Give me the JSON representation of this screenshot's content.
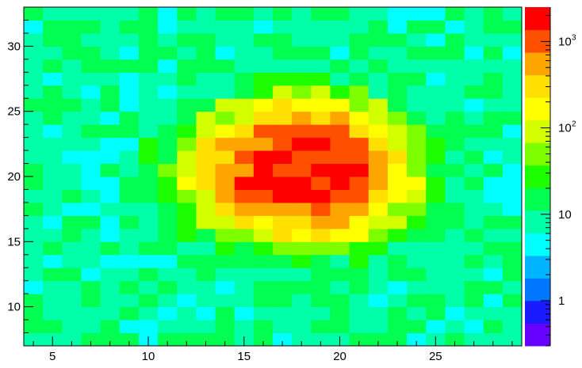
{
  "chart_data": {
    "type": "heatmap",
    "title": "",
    "xlabel": "",
    "ylabel": "",
    "x_range": [
      3.5,
      29.5
    ],
    "y_range": [
      7,
      33
    ],
    "x_bin_width": 1,
    "y_bin_width": 1,
    "x_ticks": [
      "5",
      "10",
      "15",
      "20",
      "25"
    ],
    "x_tick_values": [
      5,
      10,
      15,
      20,
      25
    ],
    "y_ticks": [
      "10",
      "15",
      "20",
      "25",
      "30"
    ],
    "y_tick_values": [
      10,
      15,
      20,
      25,
      30
    ],
    "z_scale": "log",
    "z_range": [
      0.3,
      2500
    ],
    "colorbar_ticks": [
      {
        "base": "1",
        "exp": "",
        "value": 1
      },
      {
        "base": "10",
        "exp": "",
        "value": 10
      },
      {
        "base": "10",
        "exp": "2",
        "value": 100
      },
      {
        "base": "10",
        "exp": "3",
        "value": 1000
      }
    ],
    "peak_center": [
      18,
      20.5
    ],
    "peak_value": 2500,
    "palette": [
      "#6600ff",
      "#1b1bff",
      "#0077ff",
      "#00b4ff",
      "#00ffff",
      "#00ffa8",
      "#00ff50",
      "#1dff00",
      "#7dff00",
      "#d4ff00",
      "#ffff00",
      "#ffe000",
      "#ffa500",
      "#ff5000",
      "#ff0000"
    ],
    "axis_color": "#000000",
    "background": "#ffffff"
  }
}
